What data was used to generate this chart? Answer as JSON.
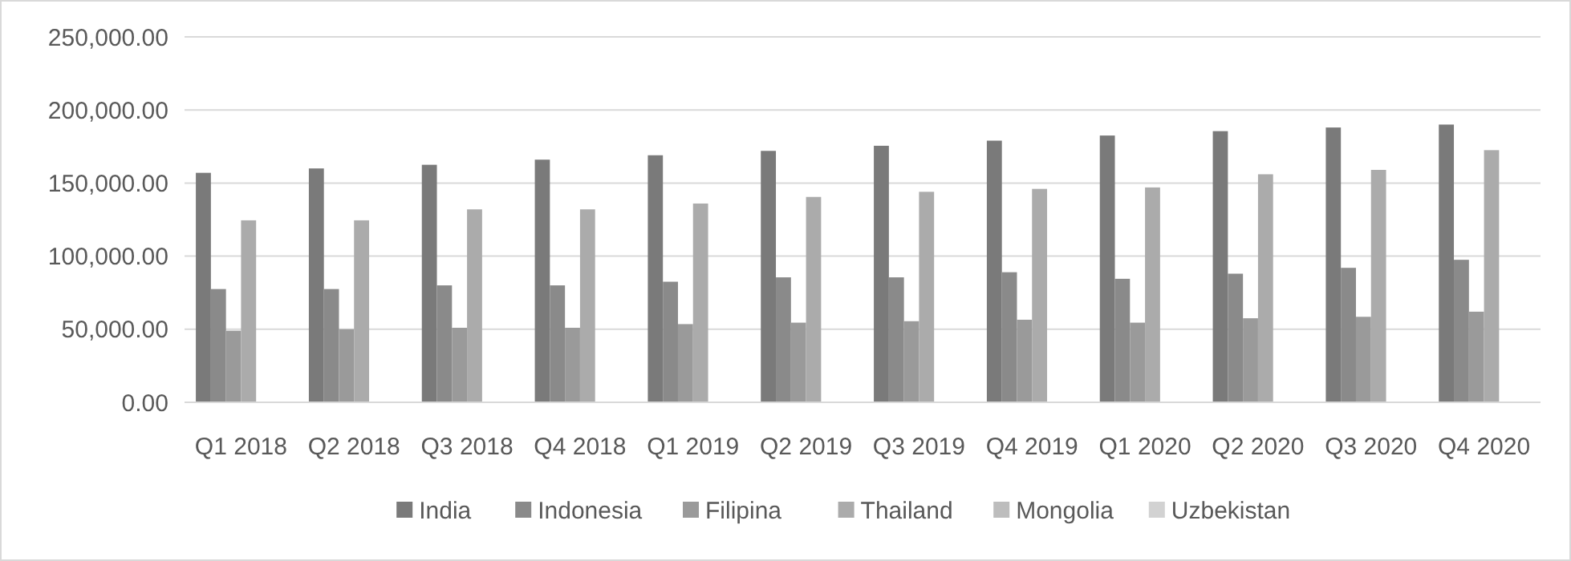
{
  "chart_data": {
    "type": "bar",
    "categories": [
      "Q1 2018",
      "Q2 2018",
      "Q3 2018",
      "Q4 2018",
      "Q1 2019",
      "Q2 2019",
      "Q3 2019",
      "Q4 2019",
      "Q1 2020",
      "Q2 2020",
      "Q3 2020",
      "Q4 2020"
    ],
    "series": [
      {
        "name": "India",
        "color": "#7a7a7a",
        "values": [
          157000,
          160000,
          162500,
          166000,
          169000,
          172000,
          175500,
          179000,
          182500,
          185500,
          188000,
          190000
        ]
      },
      {
        "name": "Indonesia",
        "color": "#8a8a8a",
        "values": [
          77500,
          77500,
          80000,
          80000,
          82500,
          85500,
          85500,
          89000,
          84500,
          88000,
          92000,
          97500
        ]
      },
      {
        "name": "Filipina",
        "color": "#9a9a9a",
        "values": [
          49000,
          50000,
          51000,
          51000,
          53500,
          54500,
          55500,
          56500,
          54500,
          57500,
          58500,
          62000
        ]
      },
      {
        "name": "Thailand",
        "color": "#ababab",
        "values": [
          124500,
          124500,
          132000,
          132000,
          136000,
          140500,
          144000,
          146000,
          147000,
          156000,
          159000,
          172500
        ]
      },
      {
        "name": "Mongolia",
        "color": "#bdbdbd",
        "values": [
          null,
          null,
          null,
          null,
          null,
          null,
          null,
          null,
          null,
          null,
          null,
          null
        ]
      },
      {
        "name": "Uzbekistan",
        "color": "#d2d2d2",
        "values": [
          null,
          null,
          null,
          null,
          null,
          null,
          null,
          null,
          null,
          null,
          null,
          null
        ]
      }
    ],
    "ylim": [
      0,
      250000
    ],
    "yticks": [
      {
        "value": 0,
        "label": "0.00"
      },
      {
        "value": 50000,
        "label": "50,000.00"
      },
      {
        "value": 100000,
        "label": "100,000.00"
      },
      {
        "value": 150000,
        "label": "150,000.00"
      },
      {
        "value": 200000,
        "label": "200,000.00"
      },
      {
        "value": 250000,
        "label": "250,000.00"
      }
    ],
    "grid": "y",
    "legend": "bottom"
  }
}
